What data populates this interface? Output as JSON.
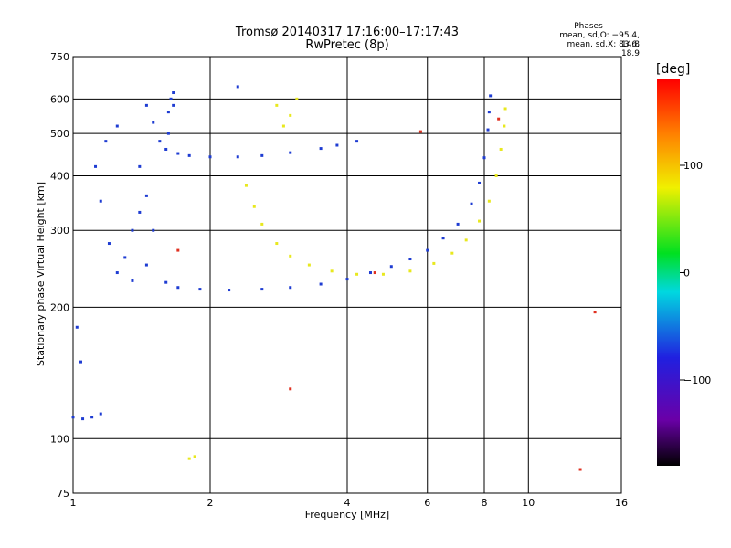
{
  "title": "Tromsø 20140317 17:16:00–17:17:43",
  "subtitle": "RwPretec (8p)",
  "phases": {
    "title": "Phases",
    "o_line": "mean, sd,O: −95.4, 14.8",
    "x_line": "mean, sd,X: 83.6, 18.9"
  },
  "chart_data": {
    "type": "scatter",
    "xlabel": "Frequency [MHz]",
    "ylabel": "Stationary phase Virtual Height [km]",
    "xscale": "log",
    "yscale": "log",
    "xlim": [
      1,
      16
    ],
    "ylim": [
      75,
      750
    ],
    "xticks": [
      1,
      2,
      4,
      6,
      8,
      10,
      16
    ],
    "yticks": [
      75,
      100,
      200,
      300,
      400,
      500,
      600,
      750
    ],
    "grid": true,
    "colorbar": {
      "label": "[deg]",
      "range": [
        -180,
        180
      ],
      "ticks": [
        100,
        0,
        -100
      ]
    },
    "series": [
      {
        "colour": "#1e3cd2",
        "points": [
          [
            1.5,
            530
          ],
          [
            1.55,
            480
          ],
          [
            1.6,
            460
          ],
          [
            1.7,
            450
          ],
          [
            1.8,
            445
          ],
          [
            2.0,
            442
          ],
          [
            2.3,
            442
          ],
          [
            2.6,
            445
          ],
          [
            3.0,
            452
          ],
          [
            3.5,
            462
          ],
          [
            3.8,
            470
          ],
          [
            4.2,
            480
          ],
          [
            1.62,
            560
          ],
          [
            1.64,
            600
          ],
          [
            1.66,
            620
          ],
          [
            1.66,
            580
          ],
          [
            1.62,
            500
          ],
          [
            1.6,
            228
          ],
          [
            1.7,
            222
          ],
          [
            1.9,
            220
          ],
          [
            2.2,
            219
          ],
          [
            2.6,
            220
          ],
          [
            3.0,
            222
          ],
          [
            3.5,
            226
          ],
          [
            4.0,
            232
          ],
          [
            4.5,
            240
          ],
          [
            5.0,
            248
          ],
          [
            5.5,
            258
          ],
          [
            6.0,
            270
          ],
          [
            6.5,
            288
          ],
          [
            7.0,
            310
          ],
          [
            7.5,
            345
          ],
          [
            7.8,
            385
          ],
          [
            8.0,
            440
          ],
          [
            8.15,
            510
          ],
          [
            8.2,
            560
          ],
          [
            8.25,
            610
          ],
          [
            1.3,
            260
          ],
          [
            1.35,
            300
          ],
          [
            1.4,
            330
          ],
          [
            1.45,
            360
          ],
          [
            1.5,
            300
          ],
          [
            1.45,
            250
          ],
          [
            1.35,
            230
          ],
          [
            1.25,
            240
          ],
          [
            1.2,
            280
          ],
          [
            1.15,
            350
          ],
          [
            1.12,
            420
          ],
          [
            1.18,
            480
          ],
          [
            1.25,
            520
          ],
          [
            1.4,
            420
          ],
          [
            1.0,
            112
          ],
          [
            1.05,
            111
          ],
          [
            1.1,
            112
          ],
          [
            1.15,
            114
          ],
          [
            1.02,
            180
          ],
          [
            1.04,
            150
          ],
          [
            1.45,
            580
          ],
          [
            2.3,
            640
          ]
        ]
      },
      {
        "colour": "#e8e81e",
        "points": [
          [
            2.4,
            380
          ],
          [
            2.5,
            340
          ],
          [
            2.6,
            310
          ],
          [
            2.8,
            280
          ],
          [
            3.0,
            262
          ],
          [
            3.3,
            250
          ],
          [
            3.7,
            242
          ],
          [
            4.2,
            238
          ],
          [
            4.8,
            238
          ],
          [
            5.5,
            242
          ],
          [
            6.2,
            252
          ],
          [
            6.8,
            266
          ],
          [
            7.3,
            285
          ],
          [
            7.8,
            315
          ],
          [
            8.2,
            350
          ],
          [
            8.5,
            400
          ],
          [
            8.7,
            460
          ],
          [
            8.85,
            520
          ],
          [
            8.9,
            570
          ],
          [
            3.0,
            550
          ],
          [
            3.1,
            600
          ],
          [
            2.8,
            580
          ],
          [
            2.9,
            520
          ],
          [
            1.8,
            90
          ],
          [
            1.85,
            91
          ]
        ]
      },
      {
        "colour": "#e03020",
        "points": [
          [
            1.7,
            270
          ],
          [
            4.6,
            240
          ],
          [
            5.8,
            505
          ],
          [
            3.0,
            130
          ],
          [
            14.0,
            195
          ],
          [
            13.0,
            85
          ],
          [
            8.6,
            540
          ]
        ]
      }
    ]
  }
}
